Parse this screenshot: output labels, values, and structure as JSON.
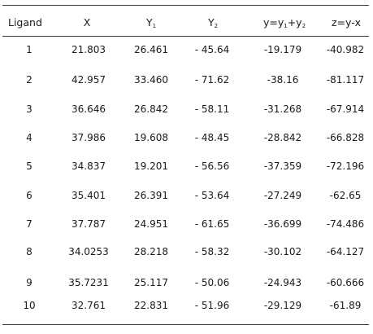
{
  "table": {
    "headers": {
      "ligand": "Ligand",
      "x": "X",
      "y1_base": "Y",
      "y1_sub": "1",
      "y2_base": "Y",
      "y2_sub": "2",
      "sum_a": "y=y",
      "sum_sub1": "1",
      "sum_b": "+y",
      "sum_sub2": "2",
      "diff": "z=y-x"
    },
    "rows": [
      {
        "ligand": "1",
        "x": "21.803",
        "y1": "26.461",
        "y2": "- 45.64",
        "y": "-19.179",
        "z": "-40.982"
      },
      {
        "ligand": "2",
        "x": "42.957",
        "y1": "33.460",
        "y2": "- 71.62",
        "y": "-38.16",
        "z": "-81.117"
      },
      {
        "ligand": "3",
        "x": "36.646",
        "y1": "26.842",
        "y2": "- 58.11",
        "y": "-31.268",
        "z": "-67.914"
      },
      {
        "ligand": "4",
        "x": "37.986",
        "y1": "19.608",
        "y2": "- 48.45",
        "y": "-28.842",
        "z": "-66.828"
      },
      {
        "ligand": "5",
        "x": "34.837",
        "y1": "19.201",
        "y2": "- 56.56",
        "y": "-37.359",
        "z": "-72.196"
      },
      {
        "ligand": "6",
        "x": "35.401",
        "y1": "26.391",
        "y2": "- 53.64",
        "y": "-27.249",
        "z": "-62.65"
      },
      {
        "ligand": "7",
        "x": "37.787",
        "y1": "24.951",
        "y2": "- 61.65",
        "y": "-36.699",
        "z": "-74.486"
      },
      {
        "ligand": "8",
        "x": "34.0253",
        "y1": "28.218",
        "y2": "- 58.32",
        "y": "-30.102",
        "z": "-64.127"
      },
      {
        "ligand": "9",
        "x": "35.7231",
        "y1": "25.117",
        "y2": "- 50.06",
        "y": "-24.943",
        "z": "-60.666"
      },
      {
        "ligand": "10",
        "x": "32.761",
        "y1": "22.831",
        "y2": "- 51.96",
        "y": "-29.129",
        "z": "-61.89"
      }
    ]
  }
}
